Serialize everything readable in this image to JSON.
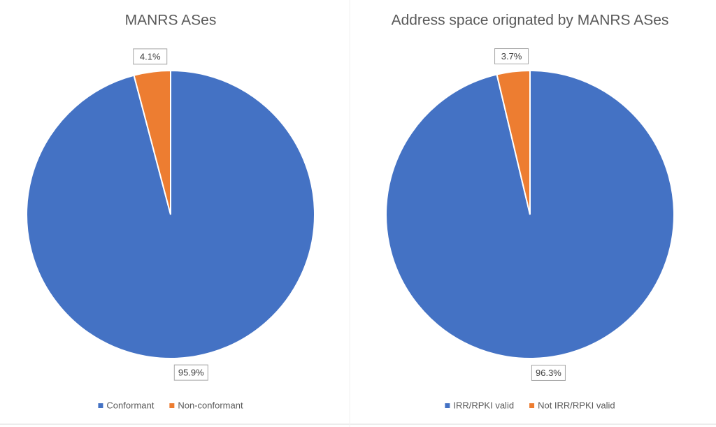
{
  "chart_data": [
    {
      "type": "pie",
      "title": "MANRS ASes",
      "categories": [
        "Conformant",
        "Non-conformant"
      ],
      "values": [
        95.9,
        4.1
      ],
      "value_labels": [
        "95.9%",
        "4.1%"
      ],
      "colors": [
        "#4472c4",
        "#ed7d31"
      ],
      "legend": "bottom"
    },
    {
      "type": "pie",
      "title": "Address space orignated by MANRS ASes",
      "categories": [
        "IRR/RPKI valid",
        "Not IRR/RPKI valid"
      ],
      "values": [
        96.3,
        3.7
      ],
      "value_labels": [
        "96.3%",
        "3.7%"
      ],
      "colors": [
        "#4472c4",
        "#ed7d31"
      ],
      "legend": "bottom"
    }
  ]
}
